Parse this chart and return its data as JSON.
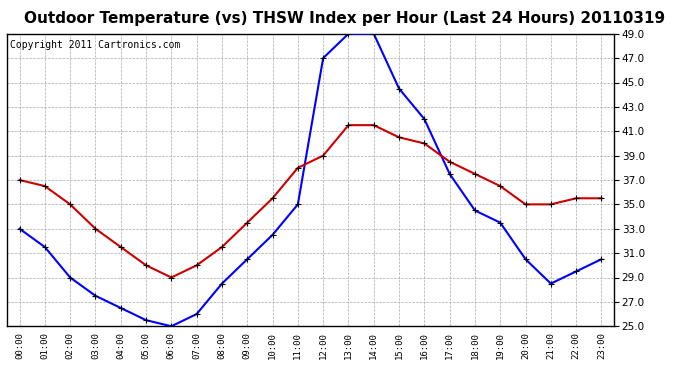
{
  "title": "Outdoor Temperature (vs) THSW Index per Hour (Last 24 Hours) 20110319",
  "copyright": "Copyright 2011 Cartronics.com",
  "hours": [
    "00:00",
    "01:00",
    "02:00",
    "03:00",
    "04:00",
    "05:00",
    "06:00",
    "07:00",
    "08:00",
    "09:00",
    "10:00",
    "11:00",
    "12:00",
    "13:00",
    "14:00",
    "15:00",
    "16:00",
    "17:00",
    "18:00",
    "19:00",
    "20:00",
    "21:00",
    "22:00",
    "23:00"
  ],
  "blue_data": [
    33.0,
    31.5,
    29.0,
    27.5,
    26.5,
    25.5,
    25.0,
    26.0,
    28.5,
    30.5,
    32.5,
    35.0,
    47.0,
    49.0,
    49.0,
    44.5,
    42.0,
    37.5,
    34.5,
    33.5,
    30.5,
    28.5,
    29.5,
    30.5
  ],
  "red_data": [
    37.0,
    36.5,
    35.0,
    33.0,
    31.5,
    30.0,
    29.0,
    30.0,
    31.5,
    33.5,
    35.5,
    38.0,
    39.0,
    41.5,
    41.5,
    40.5,
    40.0,
    38.5,
    37.5,
    36.5,
    35.0,
    35.0,
    35.5,
    35.5
  ],
  "ylim": [
    25.0,
    49.0
  ],
  "yticks": [
    25.0,
    27.0,
    29.0,
    31.0,
    33.0,
    35.0,
    37.0,
    39.0,
    41.0,
    43.0,
    45.0,
    47.0,
    49.0
  ],
  "blue_color": "#0000ff",
  "red_color": "#cc0000",
  "grid_color": "#aaaaaa",
  "bg_color": "#ffffff",
  "title_fontsize": 11,
  "copyright_fontsize": 7
}
